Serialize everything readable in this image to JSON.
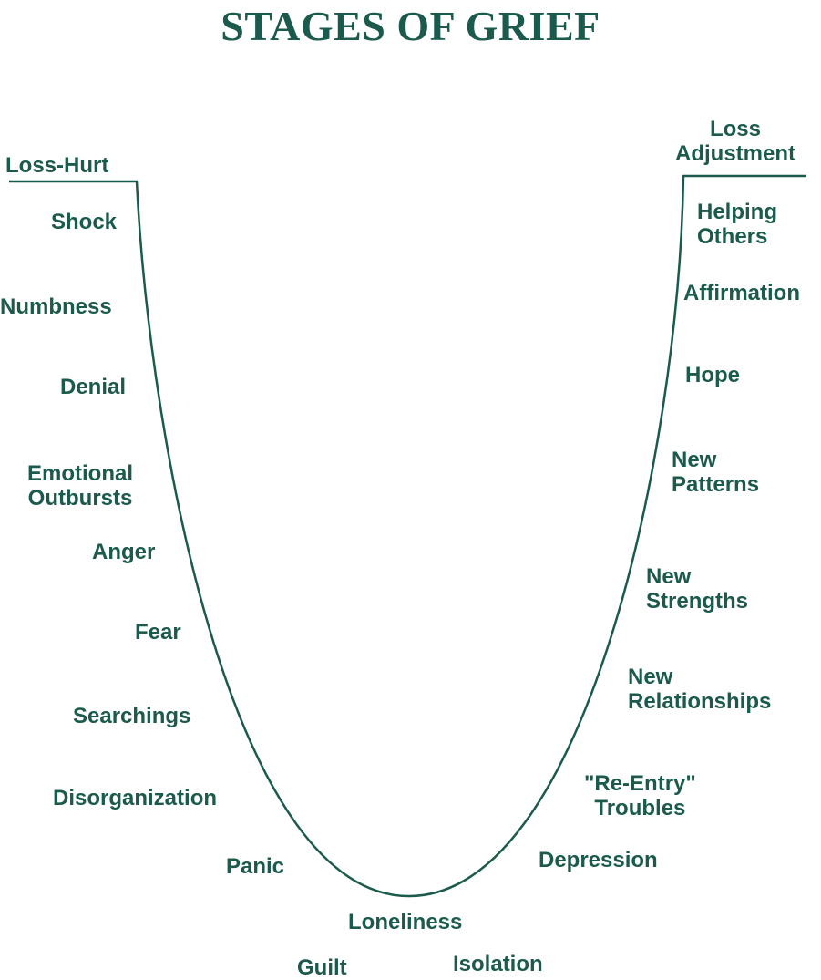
{
  "title": "STAGES OF GRIEF",
  "colors": {
    "ink": "#1b5a4c",
    "background": "#ffffff"
  },
  "start_label": "Loss-Hurt",
  "end_label": {
    "line1": "Loss",
    "line2": "Adjustment"
  },
  "descending_stages": [
    "Shock",
    "Numbness",
    "Denial",
    {
      "line1": "Emotional",
      "line2": "Outbursts"
    },
    "Anger",
    "Fear",
    "Searchings",
    "Disorganization",
    "Panic"
  ],
  "bottom_stages": [
    "Loneliness",
    "Guilt",
    "Isolation"
  ],
  "ascending_stages": [
    "Depression",
    {
      "line1": "\"Re-Entry\"",
      "line2": "Troubles"
    },
    {
      "line1": "New",
      "line2": "Relationships"
    },
    {
      "line1": "New",
      "line2": "Strengths"
    },
    {
      "line1": "New",
      "line2": "Patterns"
    },
    "Hope",
    "Affirmation",
    {
      "line1": "Helping",
      "line2": "Others"
    }
  ]
}
